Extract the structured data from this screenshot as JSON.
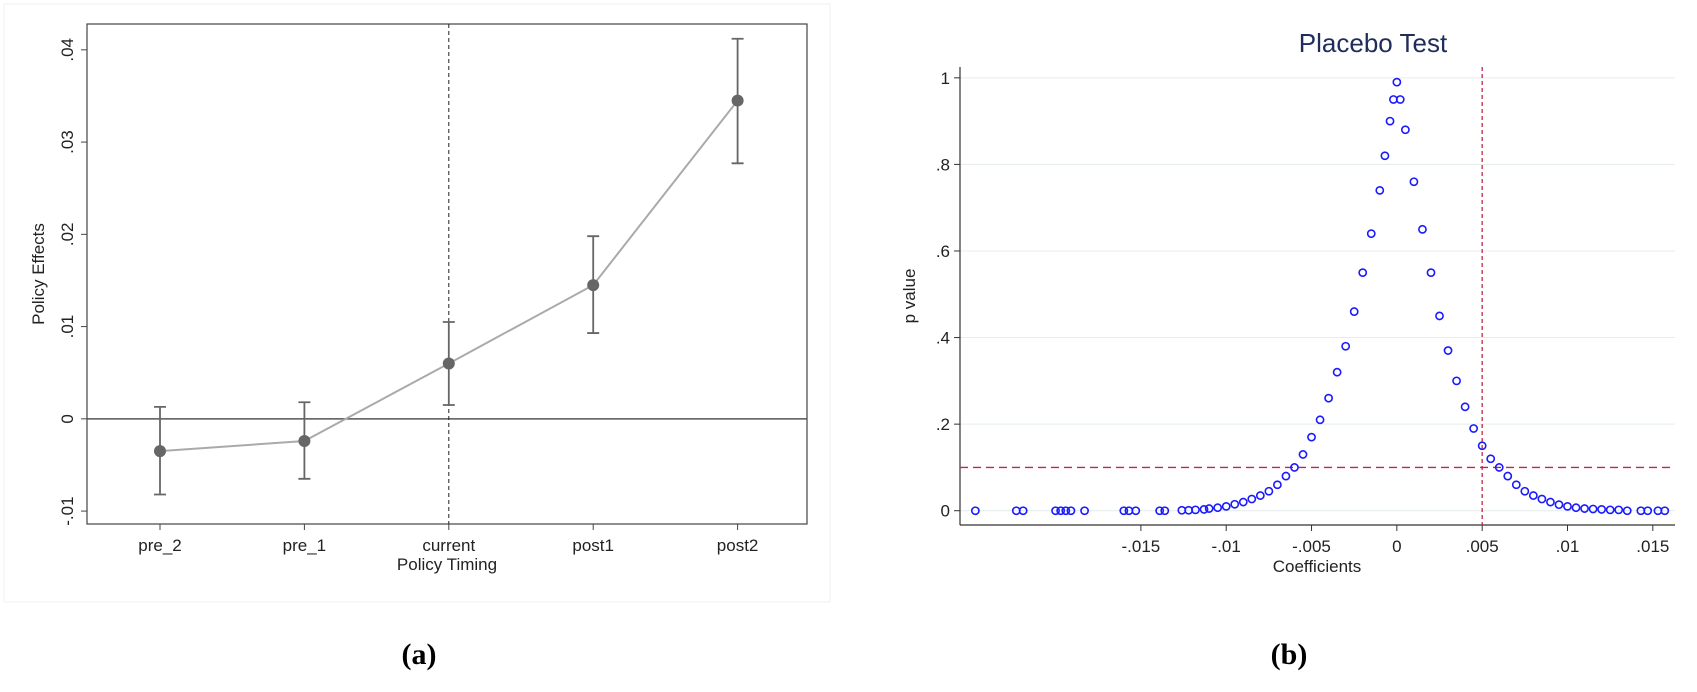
{
  "chart_data": [
    {
      "type": "line",
      "caption": "(a)",
      "x_label": "Policy Timing",
      "y_label": "Policy Effects",
      "categories": [
        "pre_2",
        "pre_1",
        "current",
        "post1",
        "post2"
      ],
      "values": [
        -0.0035,
        -0.0024,
        0.006,
        0.0145,
        0.0345
      ],
      "lower": [
        -0.0082,
        -0.0065,
        0.0015,
        0.0093,
        0.0277
      ],
      "upper": [
        0.0013,
        0.0018,
        0.0105,
        0.0198,
        0.0412
      ],
      "color": "#666666",
      "line_color": "#aaaaaa",
      "ylim": [
        -0.0114,
        0.0428
      ],
      "yticks": [
        {
          "value": -0.01,
          "label": "-.01"
        },
        0,
        {
          "value": 0.01,
          "label": ".01"
        },
        {
          "value": 0.02,
          "label": ".02"
        },
        {
          "value": 0.03,
          "label": ".03"
        },
        {
          "value": 0.04,
          "label": ".04"
        }
      ],
      "hline": 0,
      "vline_index": 2
    },
    {
      "type": "scatter",
      "caption": "(b)",
      "title": "Placebo Test",
      "x_label": "Coefficients",
      "y_label": "p value",
      "color": "#1a1aff",
      "ref_color": "#c0284a",
      "grid": true,
      "x": [
        -0.0247,
        -0.0223,
        -0.0219,
        -0.02,
        -0.0197,
        -0.0194,
        -0.0191,
        -0.0183,
        -0.016,
        -0.0157,
        -0.0153,
        -0.0139,
        -0.0136,
        -0.0126,
        -0.0122,
        -0.0118,
        -0.0113,
        -0.011,
        -0.0105,
        -0.01,
        -0.0095,
        -0.009,
        -0.0085,
        -0.008,
        -0.0075,
        -0.007,
        -0.0065,
        -0.006,
        -0.0055,
        -0.005,
        -0.0045,
        -0.004,
        -0.0035,
        -0.003,
        -0.0025,
        -0.002,
        -0.0015,
        -0.001,
        -0.0007,
        -0.0004,
        -0.0002,
        0,
        0.0002,
        0.0005,
        0.001,
        0.0015,
        0.002,
        0.0025,
        0.003,
        0.0035,
        0.004,
        0.0045,
        0.005,
        0.0055,
        0.006,
        0.0065,
        0.007,
        0.0075,
        0.008,
        0.0085,
        0.009,
        0.0095,
        0.01,
        0.0105,
        0.011,
        0.0115,
        0.012,
        0.0125,
        0.013,
        0.0135,
        0.0143,
        0.0147,
        0.0153,
        0.0157
      ],
      "y": [
        0,
        0,
        0,
        0,
        0,
        0,
        0,
        0,
        0,
        0,
        0,
        0,
        0,
        0.001,
        0.001,
        0.002,
        0.003,
        0.005,
        0.007,
        0.01,
        0.015,
        0.02,
        0.027,
        0.035,
        0.045,
        0.06,
        0.08,
        0.1,
        0.13,
        0.17,
        0.21,
        0.26,
        0.32,
        0.38,
        0.46,
        0.55,
        0.64,
        0.74,
        0.82,
        0.9,
        0.95,
        0.99,
        0.95,
        0.88,
        0.76,
        0.65,
        0.55,
        0.45,
        0.37,
        0.3,
        0.24,
        0.19,
        0.15,
        0.12,
        0.1,
        0.08,
        0.06,
        0.045,
        0.035,
        0.027,
        0.02,
        0.014,
        0.01,
        0.007,
        0.005,
        0.004,
        0.003,
        0.002,
        0.002,
        0,
        0,
        0,
        0,
        0
      ],
      "xlim": [
        -0.0256,
        0.0163
      ],
      "ylim": [
        -0.033,
        1.025
      ],
      "xticks": [
        {
          "value": -0.015,
          "label": "-.015"
        },
        {
          "value": -0.01,
          "label": "-.01"
        },
        {
          "value": -0.005,
          "label": "-.005"
        },
        0,
        {
          "value": 0.005,
          "label": ".005"
        },
        {
          "value": 0.01,
          "label": ".01"
        },
        {
          "value": 0.015,
          "label": ".015"
        }
      ],
      "yticks": [
        0,
        {
          "value": 0.2,
          "label": ".2"
        },
        {
          "value": 0.4,
          "label": ".4"
        },
        {
          "value": 0.6,
          "label": ".6"
        },
        {
          "value": 0.8,
          "label": ".8"
        },
        1
      ],
      "xline": 0.005,
      "yline": 0.1
    }
  ]
}
